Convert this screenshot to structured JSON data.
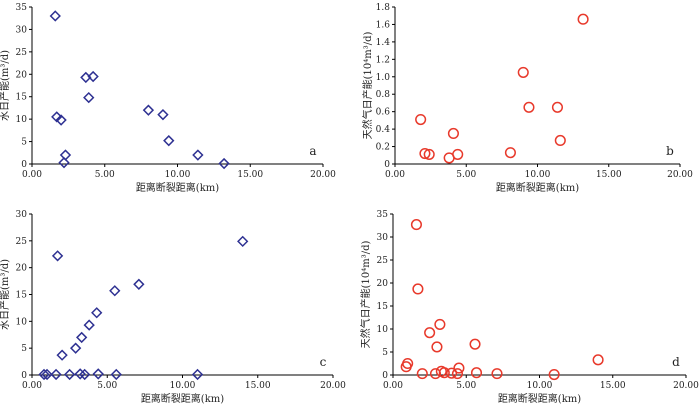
{
  "chart_data": [
    {
      "type": "scatter",
      "letter": "a",
      "xlabel": "距离断裂距离(km)",
      "ylabel": "水日产能(m³/d)",
      "xlim": [
        0,
        20
      ],
      "ylim": [
        0,
        35
      ],
      "xticks": [
        "0.00",
        "5.00",
        "10.00",
        "15.00",
        "20.00"
      ],
      "yticks": [
        "0",
        "5",
        "10",
        "15",
        "20",
        "25",
        "30",
        "35"
      ],
      "marker": "diamond",
      "color": "#2e3192",
      "x": [
        1.6,
        1.7,
        2.0,
        2.2,
        2.3,
        3.7,
        3.9,
        4.2,
        8.0,
        9.0,
        9.4,
        11.4,
        13.2
      ],
      "y": [
        33.0,
        10.5,
        9.8,
        0.3,
        2.0,
        19.3,
        14.8,
        19.5,
        12.0,
        11.0,
        5.2,
        2.0,
        0.1
      ]
    },
    {
      "type": "scatter",
      "letter": "b",
      "xlabel": "距离断裂距离(km)",
      "ylabel": "天然气日产能(10⁴m³/d)",
      "xlim": [
        0,
        20
      ],
      "ylim": [
        0,
        1.8
      ],
      "xticks": [
        "0.00",
        "5.00",
        "10.00",
        "15.00",
        "20.00"
      ],
      "yticks": [
        "0",
        "0.2",
        "0.4",
        "0.6",
        "0.8",
        "1.0",
        "1.2",
        "1.4",
        "1.6",
        "1.8"
      ],
      "marker": "circle",
      "color": "#e8392b",
      "x": [
        1.8,
        2.1,
        2.4,
        3.8,
        4.1,
        4.4,
        8.1,
        9.0,
        9.4,
        11.4,
        11.6,
        13.2
      ],
      "y": [
        0.51,
        0.12,
        0.11,
        0.07,
        0.35,
        0.11,
        0.13,
        1.05,
        0.65,
        0.65,
        0.27,
        1.66
      ]
    },
    {
      "type": "scatter",
      "letter": "c",
      "xlabel": "距离断裂距离(km)",
      "ylabel": "水日产能(m³/d)",
      "xlim": [
        0,
        20
      ],
      "ylim": [
        0,
        30
      ],
      "xticks": [
        "0.00",
        "5.00",
        "10.00",
        "15.00",
        "20.00"
      ],
      "yticks": [
        "0",
        "5",
        "10",
        "15",
        "20",
        "25",
        "30"
      ],
      "marker": "diamond",
      "color": "#2e3192",
      "x": [
        0.8,
        1.0,
        1.6,
        1.7,
        2.0,
        2.5,
        2.9,
        3.2,
        3.3,
        3.5,
        3.8,
        4.3,
        4.4,
        5.5,
        5.6,
        7.1,
        11.0,
        14.0
      ],
      "y": [
        0.1,
        0.1,
        0.1,
        22.2,
        3.7,
        0.1,
        5.0,
        0.2,
        7.0,
        0.1,
        9.3,
        11.6,
        0.2,
        15.7,
        0.1,
        16.9,
        0.1,
        24.9
      ]
    },
    {
      "type": "scatter",
      "letter": "d",
      "xlabel": "距离断裂距离(km)",
      "ylabel": "天然气日产能(10⁴m³/d)",
      "xlim": [
        0,
        20
      ],
      "ylim": [
        0,
        35
      ],
      "xticks": [
        "0.00",
        "5.00",
        "10.00",
        "15.00",
        "20.00"
      ],
      "yticks": [
        "0",
        "5",
        "10",
        "15",
        "20",
        "25",
        "30",
        "35"
      ],
      "marker": "circle",
      "color": "#e8392b",
      "x": [
        0.9,
        1.0,
        1.6,
        1.7,
        2.0,
        2.5,
        2.9,
        3.0,
        3.2,
        3.3,
        3.5,
        4.0,
        4.4,
        4.5,
        5.6,
        5.7,
        7.1,
        11.0,
        14.0
      ],
      "y": [
        1.8,
        2.5,
        32.7,
        18.7,
        0.3,
        9.2,
        0.3,
        6.1,
        11.0,
        0.8,
        0.5,
        0.4,
        0.3,
        1.5,
        6.7,
        0.5,
        0.3,
        0.1,
        3.3
      ]
    }
  ]
}
